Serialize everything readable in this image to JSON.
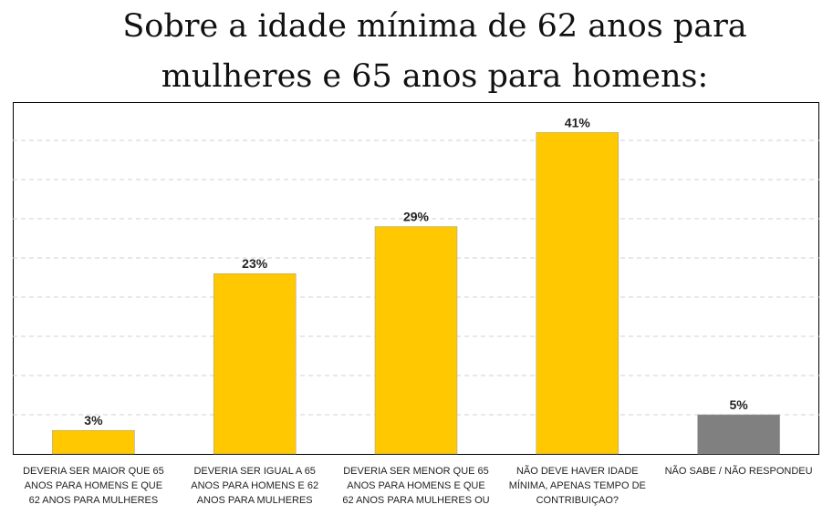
{
  "title": "Sobre a idade mínima de 62 anos para\nmulheres e 65 anos para homens:",
  "chart_data": {
    "type": "bar",
    "title": "Sobre a idade mínima de 62 anos para mulheres e 65 anos para homens:",
    "categories": [
      "DEVERIA SER MAIOR QUE 65\nANOS PARA HOMENS E QUE\n62 ANOS PARA MULHERES",
      "DEVERIA SER IGUAL A 65\nANOS PARA HOMENS E 62\nANOS PARA MULHERES",
      "DEVERIA SER MENOR QUE 65\nANOS PARA HOMENS E QUE\n62 ANOS PARA MULHERES OU",
      "NÃO DEVE HAVER IDADE\nMÍNIMA, APENAS TEMPO DE\nCONTRIBUIÇAO?",
      "NÃO SABE / NÃO RESPONDEU"
    ],
    "values": [
      3,
      23,
      29,
      41,
      5
    ],
    "data_labels": [
      "3%",
      "23%",
      "29%",
      "41%",
      "5%"
    ],
    "bar_colors": [
      "#FFC800",
      "#FFC800",
      "#FFC800",
      "#FFC800",
      "#808080"
    ],
    "ylim": [
      0,
      45
    ],
    "grid": true,
    "xlabel": "",
    "ylabel": ""
  }
}
